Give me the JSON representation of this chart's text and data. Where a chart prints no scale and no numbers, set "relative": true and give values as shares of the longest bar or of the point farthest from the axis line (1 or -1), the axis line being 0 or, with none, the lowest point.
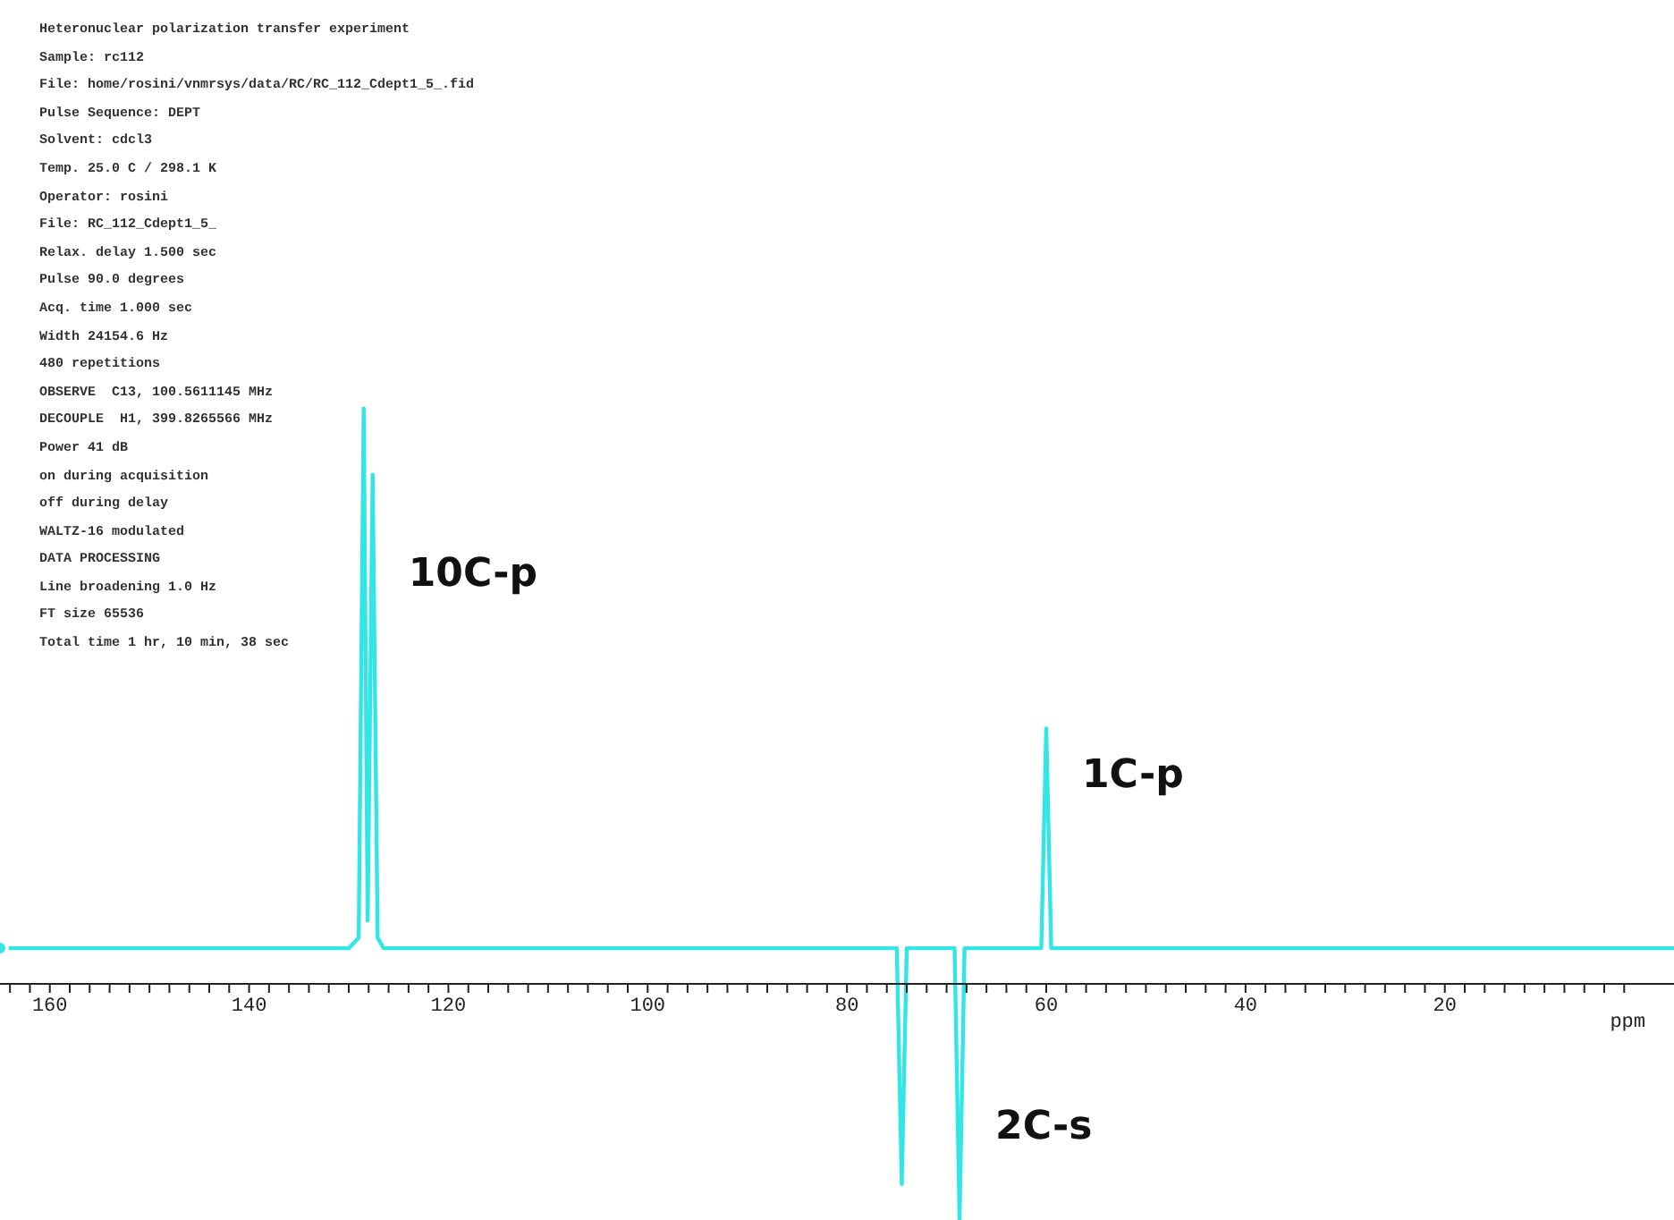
{
  "chart_data": {
    "type": "line",
    "relative": true,
    "xlabel": "ppm",
    "x": [
      165,
      130,
      129,
      128.5,
      128.1,
      127.6,
      127.1,
      126.5,
      75,
      74.5,
      74,
      69.2,
      68.7,
      68.2,
      60.5,
      60,
      59.5,
      -3
    ],
    "series": [
      {
        "color": "#33e6e6",
        "values": [
          0.062,
          0.062,
          0.08,
          1,
          0.11,
          0.885,
          0.08,
          0.062,
          0.062,
          -0.348,
          0.062,
          0.062,
          -0.41,
          0.062,
          0.062,
          0.444,
          0.062,
          0.062
        ]
      }
    ],
    "xlim": [
      165,
      -3
    ],
    "xticks": [
      {
        "value": 164,
        "label": null
      },
      {
        "value": 162,
        "label": null
      },
      160,
      {
        "value": 158,
        "label": null
      },
      {
        "value": 156,
        "label": null
      },
      {
        "value": 154,
        "label": null
      },
      {
        "value": 152,
        "label": null
      },
      {
        "value": 150,
        "label": null
      },
      {
        "value": 148,
        "label": null
      },
      {
        "value": 146,
        "label": null
      },
      {
        "value": 144,
        "label": null
      },
      {
        "value": 142,
        "label": null
      },
      140,
      {
        "value": 138,
        "label": null
      },
      {
        "value": 136,
        "label": null
      },
      {
        "value": 134,
        "label": null
      },
      {
        "value": 132,
        "label": null
      },
      {
        "value": 130,
        "label": null
      },
      {
        "value": 128,
        "label": null
      },
      {
        "value": 126,
        "label": null
      },
      {
        "value": 124,
        "label": null
      },
      {
        "value": 122,
        "label": null
      },
      120,
      {
        "value": 118,
        "label": null
      },
      {
        "value": 116,
        "label": null
      },
      {
        "value": 114,
        "label": null
      },
      {
        "value": 112,
        "label": null
      },
      {
        "value": 110,
        "label": null
      },
      {
        "value": 108,
        "label": null
      },
      {
        "value": 106,
        "label": null
      },
      {
        "value": 104,
        "label": null
      },
      {
        "value": 102,
        "label": null
      },
      100,
      {
        "value": 98,
        "label": null
      },
      {
        "value": 96,
        "label": null
      },
      {
        "value": 94,
        "label": null
      },
      {
        "value": 92,
        "label": null
      },
      {
        "value": 90,
        "label": null
      },
      {
        "value": 88,
        "label": null
      },
      {
        "value": 86,
        "label": null
      },
      {
        "value": 84,
        "label": null
      },
      {
        "value": 82,
        "label": null
      },
      80,
      {
        "value": 78,
        "label": null
      },
      {
        "value": 76,
        "label": null
      },
      {
        "value": 74,
        "label": null
      },
      {
        "value": 72,
        "label": null
      },
      {
        "value": 70,
        "label": null
      },
      {
        "value": 68,
        "label": null
      },
      {
        "value": 66,
        "label": null
      },
      {
        "value": 64,
        "label": null
      },
      {
        "value": 62,
        "label": null
      },
      60,
      {
        "value": 58,
        "label": null
      },
      {
        "value": 56,
        "label": null
      },
      {
        "value": 54,
        "label": null
      },
      {
        "value": 52,
        "label": null
      },
      {
        "value": 50,
        "label": null
      },
      {
        "value": 48,
        "label": null
      },
      {
        "value": 46,
        "label": null
      },
      {
        "value": 44,
        "label": null
      },
      {
        "value": 42,
        "label": null
      },
      40,
      {
        "value": 38,
        "label": null
      },
      {
        "value": 36,
        "label": null
      },
      {
        "value": 34,
        "label": null
      },
      {
        "value": 32,
        "label": null
      },
      {
        "value": 30,
        "label": null
      },
      {
        "value": 28,
        "label": null
      },
      {
        "value": 26,
        "label": null
      },
      {
        "value": 24,
        "label": null
      },
      {
        "value": 22,
        "label": null
      },
      20,
      {
        "value": 18,
        "label": null
      },
      {
        "value": 16,
        "label": null
      },
      {
        "value": 14,
        "label": null
      },
      {
        "value": 12,
        "label": null
      },
      {
        "value": 10,
        "label": null
      },
      {
        "value": 8,
        "label": null
      },
      {
        "value": 6,
        "label": null
      },
      {
        "value": 4,
        "label": null
      },
      {
        "value": 2,
        "label": null
      }
    ],
    "grid": false,
    "legend": false,
    "marker": "none",
    "line_style": "solid",
    "annotations": [
      "Heteronuclear polarization transfer experiment",
      "Sample: rc112",
      "File: home/rosini/vnmrsys/data/RC/RC_112_Cdept1_5_.fid",
      "Pulse Sequence: DEPT",
      "Solvent: cdcl3",
      "Temp. 25.0 C / 298.1 K",
      "Operator: rosini",
      "File: RC_112_Cdept1_5_",
      "Relax. delay 1.500 sec",
      "Pulse 90.0 degrees",
      "Acq. time 1.000 sec",
      "Width 24154.6 Hz",
      "480 repetitions",
      "OBSERVE  C13, 100.5611145 MHz",
      "DECOUPLE  H1, 399.8265566 MHz",
      "Power 41 dB",
      "on during acquisition",
      "off during delay",
      "WALTZ-16 modulated",
      "DATA PROCESSING",
      "Line broadening 1.0 Hz",
      "FT size 65536",
      "Total time 1 hr, 10 min, 38 sec",
      {
        "text": "10C-p",
        "x": 127.6,
        "y": 0.71
      },
      {
        "text": "1C-p",
        "x": 60,
        "y": 0.36
      },
      {
        "text": "2C-s",
        "x": 68.7,
        "y": -0.25
      }
    ]
  }
}
